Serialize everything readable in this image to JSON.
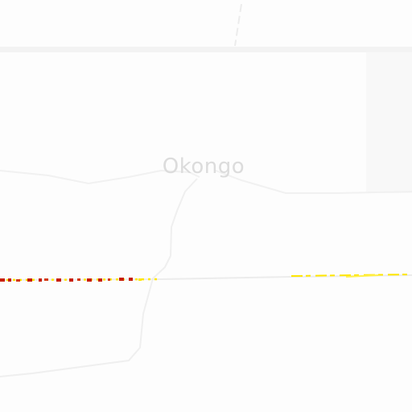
{
  "map": {
    "place_label": "Okongo",
    "colors": {
      "background": "#fdfdfd",
      "boundary": "#f2f2f2",
      "area_shade": "#f7f7f7",
      "road_minor": "#f0f0f0",
      "road_major_track": "#e8e8e8",
      "road_red": "#c81e0a",
      "road_yellow": "#ffe600",
      "label": "#dcdcdc"
    }
  }
}
